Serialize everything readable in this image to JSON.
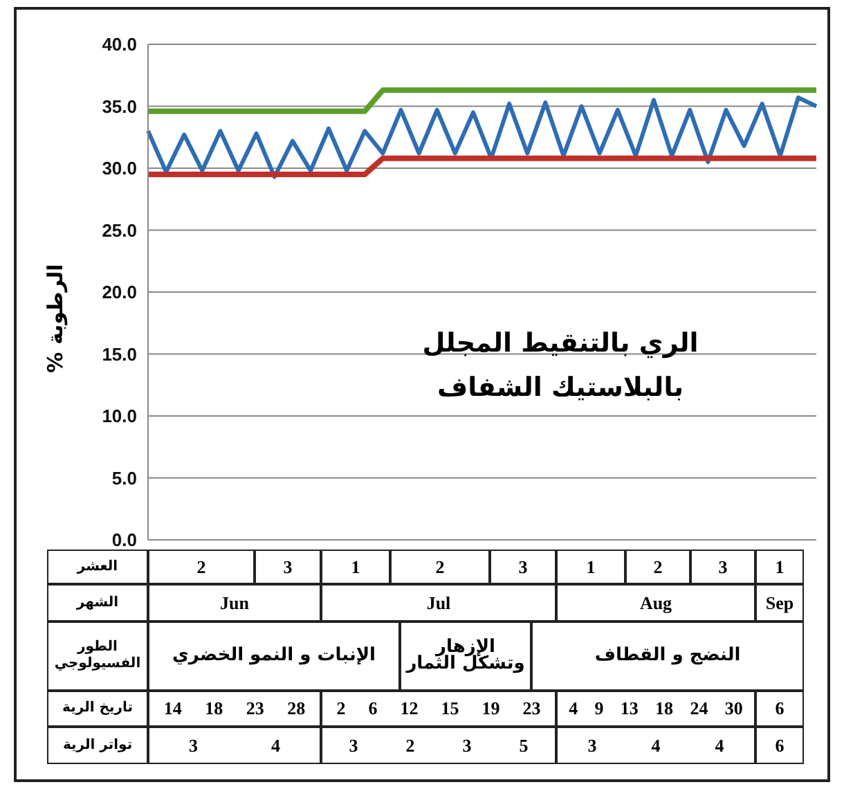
{
  "chart_data": {
    "type": "line",
    "title": "الري بالتنقيط المجلل",
    "subtitle": "بالبلاستيك الشفاف",
    "ylabel": "الرطوبة %",
    "categories": [
      null,
      null,
      null,
      null,
      null,
      null,
      null,
      null,
      null,
      null,
      null,
      null,
      null,
      null,
      null,
      null,
      null,
      null,
      null,
      null,
      null,
      null,
      null,
      null,
      null,
      null,
      null,
      null,
      null,
      null,
      null,
      null,
      null,
      null,
      null,
      null,
      null,
      null
    ],
    "series": [
      {
        "color": "#2e6db4",
        "values": [
          33.0,
          29.7,
          32.7,
          29.8,
          33.0,
          29.8,
          32.8,
          29.3,
          32.2,
          29.8,
          33.2,
          29.8,
          33.0,
          31.2,
          34.7,
          31.2,
          34.7,
          31.2,
          34.5,
          30.8,
          35.2,
          31.2,
          35.3,
          31.0,
          35.0,
          31.2,
          34.7,
          31.0,
          35.5,
          31.0,
          34.7,
          30.5,
          34.7,
          31.8,
          35.2,
          31.0,
          35.7,
          35.0
        ]
      },
      {
        "color": "#5e9e2c",
        "values": [
          34.6,
          34.6,
          34.6,
          34.6,
          34.6,
          34.6,
          34.6,
          34.6,
          34.6,
          34.6,
          34.6,
          34.6,
          34.6,
          36.3,
          36.3,
          36.3,
          36.3,
          36.3,
          36.3,
          36.3,
          36.3,
          36.3,
          36.3,
          36.3,
          36.3,
          36.3,
          36.3,
          36.3,
          36.3,
          36.3,
          36.3,
          36.3,
          36.3,
          36.3,
          36.3,
          36.3,
          36.3,
          36.3
        ]
      },
      {
        "color": "#c0302a",
        "values": [
          29.5,
          29.5,
          29.5,
          29.5,
          29.5,
          29.5,
          29.5,
          29.5,
          29.5,
          29.5,
          29.5,
          29.5,
          29.5,
          30.8,
          30.8,
          30.8,
          30.8,
          30.8,
          30.8,
          30.8,
          30.8,
          30.8,
          30.8,
          30.8,
          30.8,
          30.8,
          30.8,
          30.8,
          30.8,
          30.8,
          30.8,
          30.8,
          30.8,
          30.8,
          30.8,
          30.8,
          30.8,
          30.8
        ]
      }
    ],
    "ylim": [
      0,
      40
    ],
    "yticks": [
      {
        "value": 0,
        "label": "0.0"
      },
      {
        "value": 5,
        "label": "5.0"
      },
      {
        "value": 10,
        "label": "10.0"
      },
      {
        "value": 15,
        "label": "15.0"
      },
      {
        "value": 20,
        "label": "20.0"
      },
      {
        "value": 25,
        "label": "25.0"
      },
      {
        "value": 30,
        "label": "30.0"
      },
      {
        "value": 35,
        "label": "35.0"
      },
      {
        "value": 40,
        "label": "40.0"
      }
    ],
    "grid": "y",
    "tick_labels": "y",
    "marker": "none",
    "line_style": "solid",
    "annotations": [
      "العشر",
      "2",
      "3",
      "1",
      "2",
      "3",
      "1",
      "2",
      "3",
      "1",
      "الشهر",
      "Jun",
      "Jul",
      "Aug",
      "Sep",
      "الطور الفسيولوجي",
      "الإنبات و النمو الخضري",
      "الإزهار وتشكل الثمار",
      "النضج و القطاف",
      "تاريخ الرية",
      "14 18 23 28",
      "2 6 12 15 19 23",
      "4 9 13 18 24 30",
      "6",
      "تواتر الرية",
      "3 4",
      "3 2 3 5",
      "3 4 4",
      "6"
    ]
  }
}
